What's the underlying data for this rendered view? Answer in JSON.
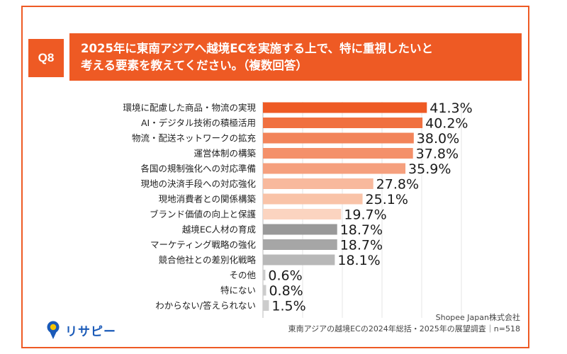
{
  "question": {
    "badge": "Q8",
    "line1": "2025年に東南アジアへ越境ECを実施する上で、特に重視したいと",
    "line2": "考える要素を教えてください。（複数回答）"
  },
  "source": {
    "line1": "Shopee Japan株式会社",
    "line2": "東南アジアの越境ECの2024年総括・2025年の展望調査｜n=518"
  },
  "logo": {
    "text": "リサピー",
    "icon": "magnifier-pin-icon"
  },
  "colors": {
    "accent": "#ee5a24"
  },
  "chart_data": {
    "type": "bar",
    "orientation": "horizontal",
    "categories": [
      "環境に配慮した商品・物流の実現",
      "AI・デジタル技術の積極活用",
      "物流・配送ネットワークの拡充",
      "運営体制の構築",
      "各国の規制強化への対応準備",
      "現地の決済手段への対応強化",
      "現地消費者との関係構築",
      "ブランド価値の向上と保護",
      "越境EC人材の育成",
      "マーケティング戦略の強化",
      "競合他社との差別化戦略",
      "その他",
      "特にない",
      "わからない/答えられない"
    ],
    "values": [
      41.3,
      40.2,
      38.0,
      37.8,
      35.9,
      27.8,
      25.1,
      19.7,
      18.7,
      18.7,
      18.1,
      0.6,
      0.8,
      1.5
    ],
    "value_labels": [
      "41.3%",
      "40.2%",
      "38.0%",
      "37.8%",
      "35.9%",
      "27.8%",
      "25.1%",
      "19.7%",
      "18.7%",
      "18.7%",
      "18.1%",
      "0.6%",
      "0.8%",
      "1.5%"
    ],
    "bar_colors": [
      "#ee5a24",
      "#f07040",
      "#f2845a",
      "#f4906a",
      "#f5a07e",
      "#f8b99d",
      "#f9c3a8",
      "#fbd4c0",
      "#999999",
      "#a6a6a6",
      "#b8b8b8",
      "#cccccc",
      "#cccccc",
      "#cccccc"
    ],
    "xlim": [
      0,
      50
    ],
    "grid": true
  }
}
